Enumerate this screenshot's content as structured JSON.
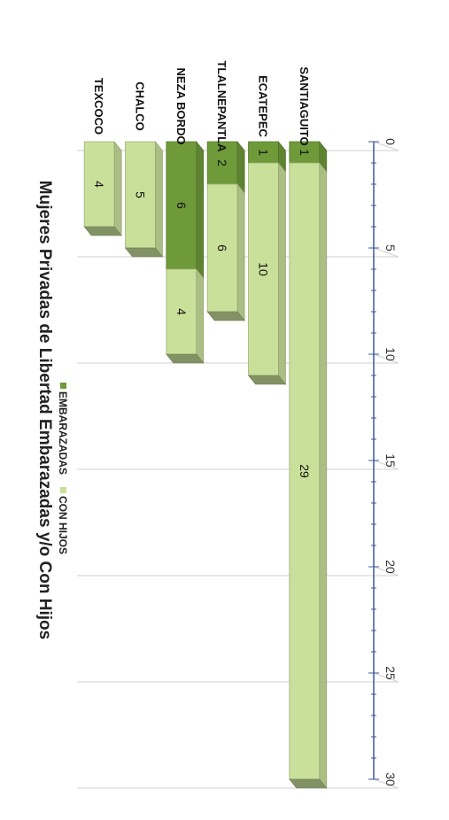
{
  "chart_data": {
    "type": "bar",
    "orientation": "horizontal-stacked-3d",
    "title": "Mujeres Privadas de Libertad Embarazadas y/o Con Hijos",
    "categories": [
      "SANTIAGUITO",
      "ECATEPEC",
      "TLALNEPANTLA",
      "NEZA BORDO",
      "CHALCO",
      "TEXCOCO"
    ],
    "series": [
      {
        "name": "EMBARAZADAS",
        "values": [
          1,
          1,
          2,
          6,
          0,
          0
        ],
        "color": "#6f9a3a"
      },
      {
        "name": "CON HIJOS",
        "values": [
          29,
          10,
          6,
          4,
          5,
          4
        ],
        "color": "#c9e09a"
      }
    ],
    "xlim": [
      0,
      30
    ],
    "ticks": [
      0,
      5,
      10,
      15,
      20,
      25,
      30
    ],
    "grid": true,
    "legend_position": "bottom"
  }
}
